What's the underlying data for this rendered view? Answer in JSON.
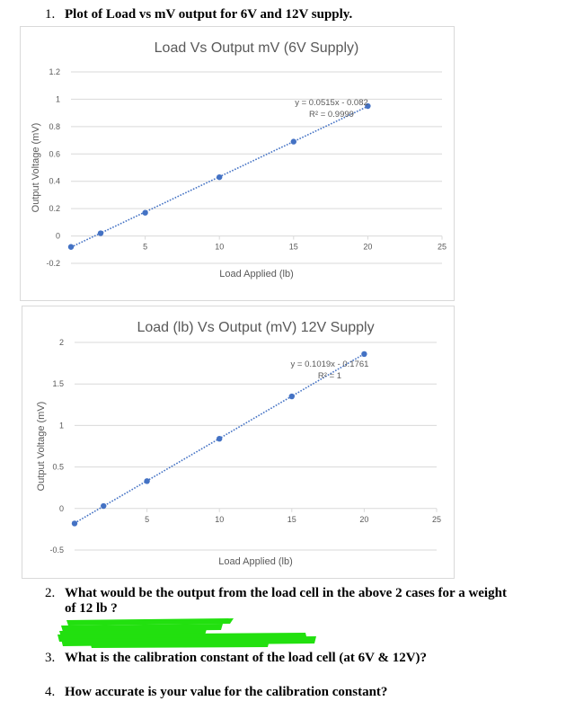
{
  "questions": [
    {
      "number": "1.",
      "text": "Plot of Load vs mV output for 6V and 12V supply."
    },
    {
      "number": "2.",
      "text": "What would be the output from the load cell in the above 2 cases for a weight",
      "text2": "of 12 lb ?"
    },
    {
      "number": "3.",
      "text": "What is the calibration constant of the load cell (at 6V & 12V)?"
    },
    {
      "number": "4.",
      "text": "How accurate is your value for the calibration constant?"
    }
  ],
  "colors": {
    "marker": "#4472c4",
    "grid": "#d9d9d9",
    "axis_text": "#595959",
    "redaction": "#22e00f"
  },
  "chart_data": [
    {
      "type": "scatter",
      "title": "Load Vs Output mV (6V Supply)",
      "xlabel": "Load Applied (lb)",
      "ylabel": "Output Voltage (mV)",
      "xlim": [
        0,
        25
      ],
      "ylim": [
        -0.2,
        1.2
      ],
      "xticks": [
        5,
        10,
        15,
        20,
        25
      ],
      "yticks": [
        -0.2,
        0,
        0.2,
        0.4,
        0.6,
        0.8,
        1,
        1.2
      ],
      "ytick_labels": [
        "-0.2",
        "0",
        "0.2",
        "0.4",
        "0.6",
        "0.8",
        "1",
        "1.2"
      ],
      "grid": "horizontal",
      "series": [
        {
          "x": [
            0,
            2,
            5,
            10,
            15,
            20
          ],
          "y": [
            -0.08,
            0.02,
            0.17,
            0.43,
            0.69,
            0.95
          ]
        }
      ],
      "trendline": {
        "slope": 0.0515,
        "intercept": -0.082,
        "x_range": [
          0,
          20
        ]
      },
      "annotation": [
        "y = 0.0515x - 0.082",
        "R² = 0.9999"
      ]
    },
    {
      "type": "scatter",
      "title": "Load (lb) Vs Output (mV) 12V Supply",
      "xlabel": "Load Applied (lb)",
      "ylabel": "Output Voltage (mV)",
      "xlim": [
        0,
        25
      ],
      "ylim": [
        -0.5,
        2
      ],
      "xticks": [
        5,
        10,
        15,
        20,
        25
      ],
      "yticks": [
        -0.5,
        0,
        0.5,
        1,
        1.5,
        2
      ],
      "ytick_labels": [
        "-0.5",
        "0",
        "0.5",
        "1",
        "1.5",
        "2"
      ],
      "grid": "horizontal",
      "series": [
        {
          "x": [
            0,
            2,
            5,
            10,
            15,
            20
          ],
          "y": [
            -0.18,
            0.03,
            0.33,
            0.84,
            1.35,
            1.86
          ]
        }
      ],
      "trendline": {
        "slope": 0.1019,
        "intercept": -0.1761,
        "x_range": [
          0,
          20
        ]
      },
      "annotation": [
        "y = 0.1019x - 0.1761",
        "R² = 1"
      ]
    }
  ]
}
